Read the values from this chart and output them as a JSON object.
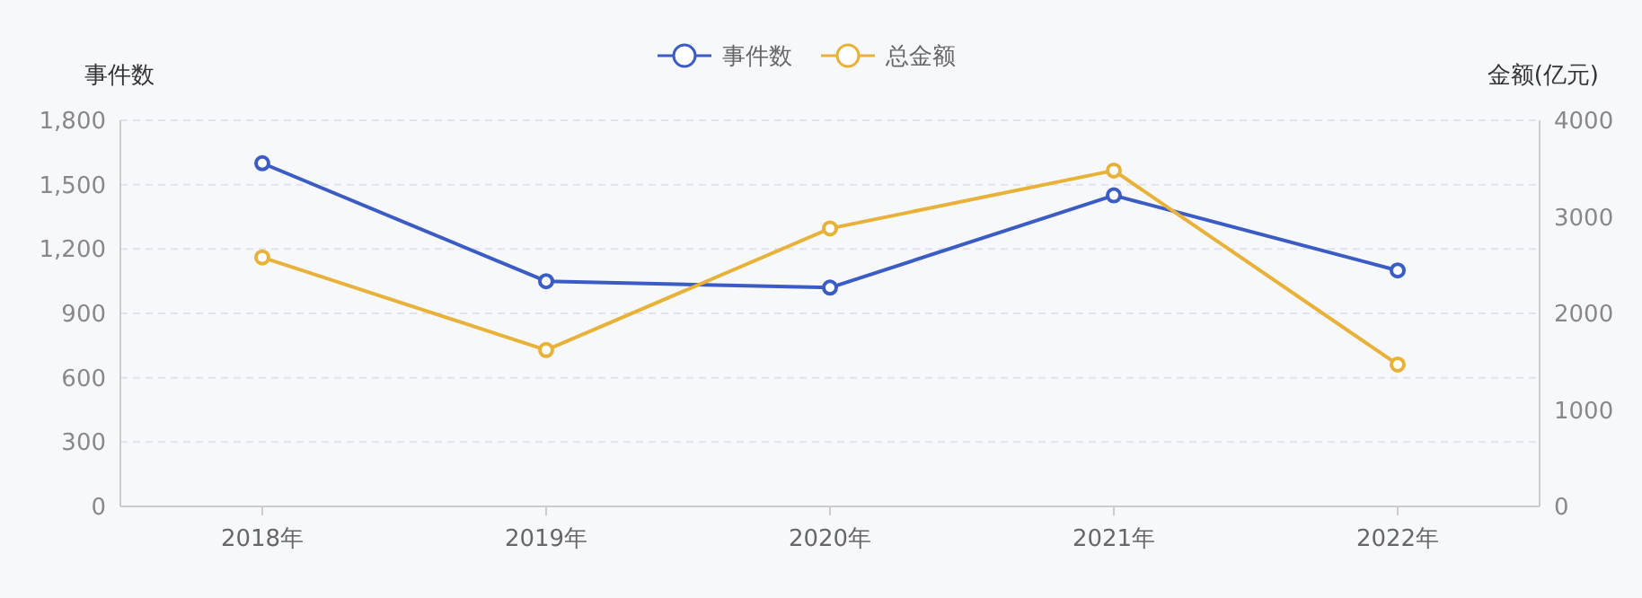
{
  "chart_data": {
    "type": "line",
    "categories": [
      "2018年",
      "2019年",
      "2020年",
      "2021年",
      "2022年"
    ],
    "ylabel": "事件数",
    "y2label": "金额(亿元)",
    "series": [
      {
        "name": "事件数",
        "color": "#3b5cc4",
        "values": [
          1600,
          1050,
          1020,
          1450,
          1100
        ]
      },
      {
        "name": "总金额",
        "color": "#e8b23a",
        "values": [
          2580,
          1620,
          2880,
          3480,
          1470
        ],
        "axis": "y2"
      }
    ],
    "ylim": [
      0,
      1800
    ],
    "yticks": [
      0,
      300,
      600,
      900,
      {
        "value": 1200,
        "label": "1,200"
      },
      {
        "value": 1500,
        "label": "1,500"
      },
      {
        "value": 1800,
        "label": "1,800"
      }
    ],
    "y2lim": [
      0,
      4000
    ],
    "y2ticks": [
      0,
      1000,
      2000,
      3000,
      4000
    ],
    "grid": "y",
    "legend": "top",
    "marker": "circle",
    "line_style": "solid"
  }
}
